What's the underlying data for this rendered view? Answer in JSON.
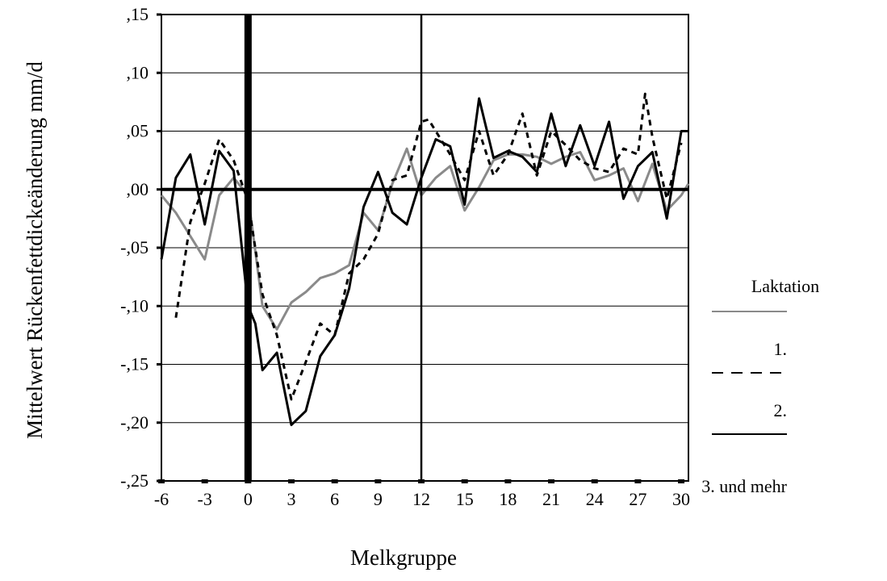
{
  "chart_data": {
    "type": "line",
    "xlabel": "Melkgruppe",
    "ylabel": "Mittelwert Rückenfettdickeänderung mm/d",
    "xlim": [
      -6,
      30.5
    ],
    "ylim": [
      -0.25,
      0.15
    ],
    "x_ticks": [
      -6,
      -3,
      0,
      3,
      6,
      9,
      12,
      15,
      18,
      21,
      24,
      27,
      30
    ],
    "x_tick_labels": [
      "-6",
      "-3",
      "0",
      "3",
      "6",
      "9",
      "12",
      "15",
      "18",
      "21",
      "24",
      "27",
      "30"
    ],
    "y_ticks": [
      -0.25,
      -0.2,
      -0.15,
      -0.1,
      -0.05,
      0,
      0.05,
      0.1,
      0.15
    ],
    "y_tick_labels": [
      "-,25",
      "-,20",
      "-,15",
      "-,10",
      "-,05",
      ",00",
      ",05",
      ",10",
      ",15"
    ],
    "reference_lines_x": [
      0,
      12
    ],
    "reference_line_y": 0,
    "grid": "horizontal",
    "legend": {
      "title": "Laktation",
      "placement": "right",
      "entries": [
        "1.",
        "2.",
        "3. und mehr"
      ]
    },
    "series": [
      {
        "name": "1.",
        "color": "#8a8a8a",
        "dash": "solid",
        "x": [
          -6,
          -5,
          -4,
          -3,
          -2,
          -1,
          0,
          1,
          2,
          3,
          4,
          5,
          6,
          7,
          8,
          9,
          10,
          11,
          12,
          13,
          14,
          15,
          16,
          17,
          18,
          19,
          20,
          21,
          22,
          23,
          24,
          25,
          26,
          27,
          28,
          29,
          30,
          30.5
        ],
        "y": [
          -0.005,
          -0.02,
          -0.04,
          -0.06,
          -0.005,
          0.01,
          -0.005,
          -0.1,
          -0.12,
          -0.097,
          -0.088,
          -0.076,
          -0.072,
          -0.065,
          -0.02,
          -0.035,
          0.005,
          0.035,
          -0.005,
          0.01,
          0.02,
          -0.018,
          0.002,
          0.025,
          0.03,
          0.03,
          0.028,
          0.022,
          0.028,
          0.032,
          0.008,
          0.012,
          0.018,
          -0.01,
          0.022,
          -0.018,
          -0.005,
          0.005
        ]
      },
      {
        "name": "2.",
        "color": "#000000",
        "dash": "dashed",
        "x": [
          -5,
          -4,
          -3,
          -2,
          -1,
          0,
          1,
          2,
          3,
          4,
          5,
          6,
          7,
          8,
          9,
          10,
          11,
          12,
          12.5,
          13,
          14,
          15,
          16,
          17,
          18,
          19,
          20,
          21,
          22,
          23,
          24,
          25,
          26,
          27,
          27.5,
          28,
          29,
          30
        ],
        "y": [
          -0.11,
          -0.028,
          0.005,
          0.043,
          0.025,
          -0.01,
          -0.09,
          -0.125,
          -0.18,
          -0.148,
          -0.115,
          -0.125,
          -0.072,
          -0.06,
          -0.038,
          0.008,
          0.012,
          0.058,
          0.06,
          0.05,
          0.03,
          0.008,
          0.05,
          0.012,
          0.03,
          0.065,
          0.012,
          0.05,
          0.038,
          0.025,
          0.018,
          0.015,
          0.035,
          0.03,
          0.082,
          0.045,
          -0.008,
          0.04
        ]
      },
      {
        "name": "3. und mehr",
        "color": "#000000",
        "dash": "solid",
        "x": [
          -6,
          -5,
          -4,
          -3,
          -2,
          -1,
          0,
          0.5,
          1,
          2,
          3,
          4,
          5,
          6,
          7,
          8,
          9,
          10,
          11,
          12,
          13,
          14,
          15,
          16,
          17,
          18,
          19,
          20,
          21,
          22,
          23,
          24,
          25,
          26,
          27,
          28,
          29,
          30,
          30.5
        ],
        "y": [
          -0.06,
          0.01,
          0.03,
          -0.03,
          0.033,
          0.016,
          -0.1,
          -0.115,
          -0.155,
          -0.14,
          -0.202,
          -0.19,
          -0.143,
          -0.125,
          -0.085,
          -0.015,
          0.015,
          -0.02,
          -0.03,
          0.01,
          0.043,
          0.037,
          -0.013,
          0.078,
          0.027,
          0.033,
          0.028,
          0.015,
          0.065,
          0.02,
          0.055,
          0.02,
          0.058,
          -0.008,
          0.02,
          0.032,
          -0.025,
          0.05,
          0.05
        ]
      }
    ]
  }
}
